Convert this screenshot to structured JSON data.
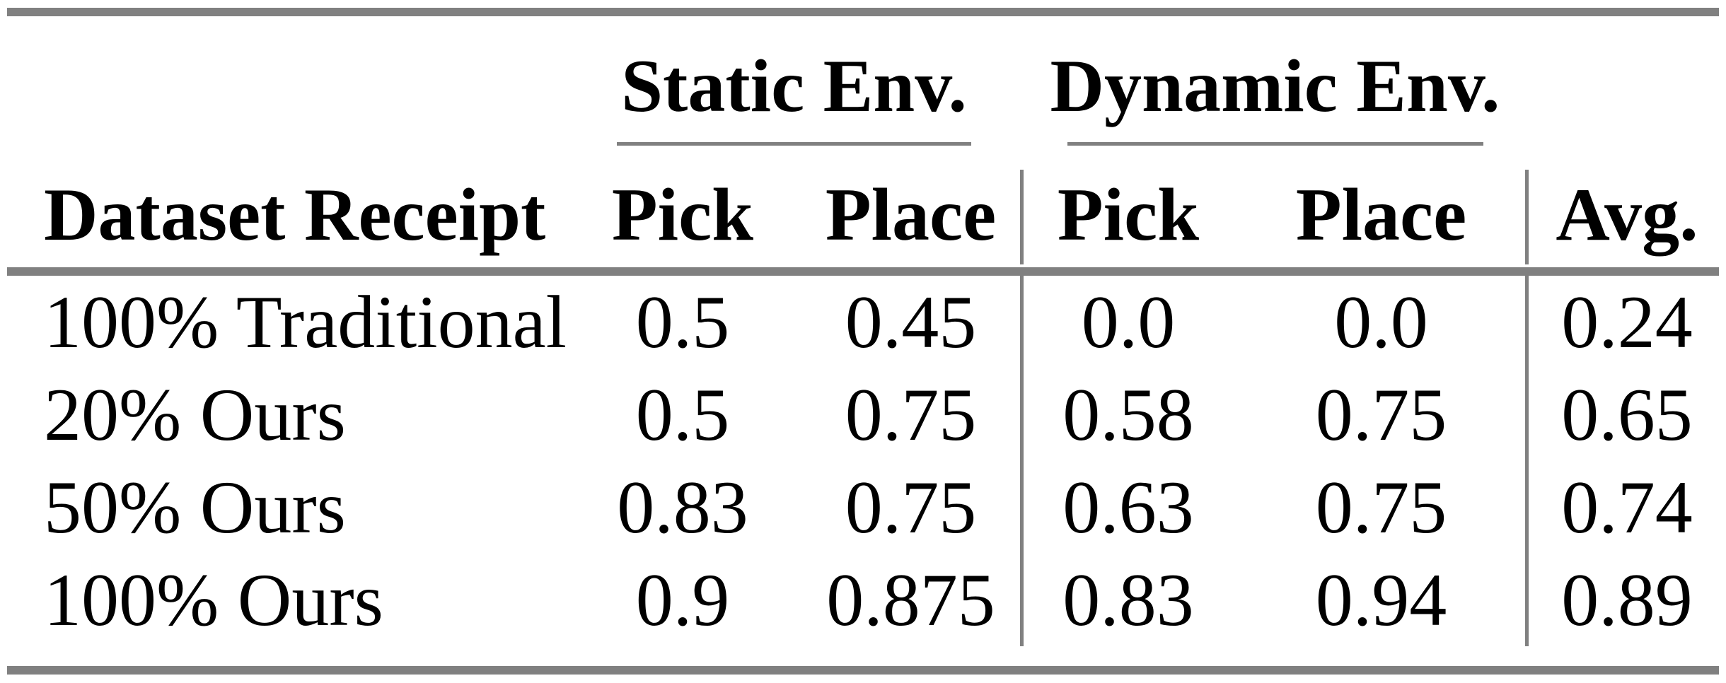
{
  "table": {
    "header": {
      "static_group": "Static Env.",
      "dynamic_group": "Dynamic Env.",
      "dataset": "Dataset Receipt",
      "static_pick": "Pick",
      "static_place": "Place",
      "dynamic_pick": "Pick",
      "dynamic_place": "Place",
      "avg": "Avg."
    },
    "rows": [
      {
        "label": "100% Traditional",
        "static_pick": "0.5",
        "static_place": "0.45",
        "dynamic_pick": "0.0",
        "dynamic_place": "0.0",
        "avg": "0.24"
      },
      {
        "label": "20% Ours",
        "static_pick": "0.5",
        "static_place": "0.75",
        "dynamic_pick": "0.58",
        "dynamic_place": "0.75",
        "avg": "0.65"
      },
      {
        "label": "50% Ours",
        "static_pick": "0.83",
        "static_place": "0.75",
        "dynamic_pick": "0.63",
        "dynamic_place": "0.75",
        "avg": "0.74"
      },
      {
        "label": "100% Ours",
        "static_pick": "0.9",
        "static_place": "0.875",
        "dynamic_pick": "0.83",
        "dynamic_place": "0.94",
        "avg": "0.89"
      }
    ],
    "colors": {
      "rule_gray": "#808080",
      "text": "#000000",
      "background": "#ffffff"
    }
  }
}
